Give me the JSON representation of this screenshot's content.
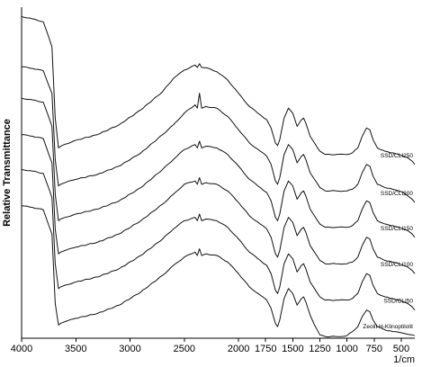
{
  "chart_data": {
    "type": "line",
    "xlabel": "1/cm",
    "ylabel": "Relative Transmittance",
    "xlim": [
      4000,
      375
    ],
    "x_reversed": true,
    "x_ticks": [
      4000,
      3500,
      3000,
      2500,
      2000,
      1750,
      1500,
      1250,
      1000,
      750,
      500
    ],
    "ylim": [
      0,
      100
    ],
    "y_ticks_shown": false,
    "grid": false,
    "legend": "none",
    "line_color": "#111111",
    "series": [
      {
        "name": "SSD/CLI250",
        "x": [
          4000,
          3900,
          3800,
          3720,
          3690,
          3660,
          3640,
          3600,
          3500,
          3300,
          3100,
          2900,
          2700,
          2600,
          2500,
          2400,
          2380,
          2360,
          2340,
          2300,
          2200,
          2100,
          2000,
          1900,
          1800,
          1740,
          1700,
          1660,
          1640,
          1620,
          1580,
          1540,
          1500,
          1460,
          1420,
          1400,
          1380,
          1340,
          1300,
          1250,
          1200,
          1100,
          1000,
          950,
          900,
          860,
          820,
          790,
          760,
          720,
          650,
          580,
          520,
          480,
          440,
          400,
          375
        ],
        "y": [
          97.2,
          96.5,
          95.6,
          88.0,
          66.5,
          57.5,
          58.0,
          58.6,
          59.8,
          61.5,
          64.5,
          69.0,
          74.5,
          78.5,
          81.0,
          82.5,
          81.8,
          82.9,
          81.8,
          81.7,
          80.5,
          78.0,
          74.0,
          70.0,
          67.5,
          66.0,
          63.5,
          59.0,
          58.2,
          60.0,
          66.5,
          69.5,
          68.0,
          64.0,
          66.0,
          66.5,
          65.0,
          61.0,
          59.0,
          56.5,
          55.5,
          55.5,
          55.5,
          56.0,
          57.5,
          61.0,
          63.5,
          63.0,
          60.0,
          57.5,
          56.5,
          56.0,
          55.5,
          55.0,
          54.5,
          53.5,
          52.5
        ]
      },
      {
        "name": "SSD/CLI200",
        "x": [
          4000,
          3900,
          3800,
          3720,
          3690,
          3660,
          3640,
          3600,
          3500,
          3300,
          3100,
          2900,
          2700,
          2600,
          2500,
          2400,
          2380,
          2360,
          2340,
          2300,
          2200,
          2100,
          2000,
          1900,
          1800,
          1740,
          1700,
          1660,
          1640,
          1620,
          1580,
          1540,
          1500,
          1460,
          1420,
          1400,
          1380,
          1340,
          1300,
          1250,
          1200,
          1100,
          1000,
          950,
          900,
          860,
          820,
          790,
          760,
          720,
          650,
          580,
          520,
          480,
          440,
          400,
          375
        ],
        "y": [
          82.0,
          81.5,
          80.8,
          74.0,
          54.0,
          46.0,
          46.5,
          47.0,
          48.0,
          49.5,
          52.0,
          56.0,
          61.5,
          64.5,
          68.0,
          70.5,
          69.5,
          74.0,
          69.5,
          70.0,
          69.5,
          67.0,
          63.0,
          59.0,
          56.5,
          55.0,
          52.5,
          47.5,
          46.5,
          48.5,
          55.5,
          58.5,
          57.0,
          53.0,
          55.0,
          55.5,
          54.0,
          50.0,
          48.0,
          45.5,
          44.5,
          44.5,
          44.5,
          45.0,
          46.5,
          50.0,
          52.5,
          52.0,
          49.0,
          46.5,
          45.5,
          45.0,
          44.5,
          44.0,
          43.0,
          42.0,
          41.0
        ]
      },
      {
        "name": "SSD/CLI150",
        "x": [
          4000,
          3900,
          3800,
          3720,
          3690,
          3660,
          3640,
          3600,
          3500,
          3300,
          3100,
          2900,
          2700,
          2600,
          2500,
          2400,
          2380,
          2360,
          2340,
          2300,
          2200,
          2100,
          2000,
          1900,
          1800,
          1740,
          1700,
          1660,
          1640,
          1620,
          1580,
          1540,
          1500,
          1460,
          1420,
          1400,
          1380,
          1340,
          1300,
          1250,
          1200,
          1100,
          1000,
          950,
          900,
          860,
          820,
          790,
          760,
          720,
          650,
          580,
          520,
          480,
          440,
          400,
          375
        ],
        "y": [
          72.5,
          72.0,
          71.3,
          64.0,
          43.5,
          35.5,
          36.0,
          36.5,
          37.5,
          39.0,
          41.5,
          45.5,
          51.0,
          54.0,
          57.0,
          58.5,
          57.5,
          59.5,
          57.5,
          58.0,
          57.5,
          55.5,
          52.0,
          48.0,
          45.5,
          44.0,
          41.5,
          36.5,
          35.5,
          37.5,
          44.5,
          47.5,
          46.0,
          42.0,
          44.0,
          44.5,
          43.0,
          39.0,
          37.0,
          34.5,
          33.5,
          33.5,
          33.5,
          34.0,
          35.5,
          39.0,
          41.5,
          41.0,
          38.0,
          35.5,
          34.5,
          34.0,
          33.5,
          33.0,
          32.5,
          31.5,
          30.5
        ]
      },
      {
        "name": "SSD/CLI100",
        "x": [
          4000,
          3900,
          3800,
          3720,
          3690,
          3660,
          3640,
          3600,
          3500,
          3300,
          3100,
          2900,
          2700,
          2600,
          2500,
          2400,
          2380,
          2360,
          2340,
          2300,
          2200,
          2100,
          2000,
          1900,
          1800,
          1740,
          1700,
          1660,
          1640,
          1620,
          1580,
          1540,
          1500,
          1460,
          1420,
          1400,
          1380,
          1340,
          1300,
          1250,
          1200,
          1100,
          1000,
          950,
          900,
          860,
          820,
          790,
          760,
          720,
          650,
          580,
          520,
          480,
          440,
          400,
          375
        ],
        "y": [
          61.5,
          61.0,
          60.3,
          53.0,
          33.0,
          25.5,
          26.0,
          26.5,
          27.5,
          29.0,
          31.5,
          35.5,
          40.5,
          43.5,
          46.5,
          47.5,
          46.5,
          48.5,
          46.5,
          47.0,
          46.5,
          44.5,
          41.0,
          37.0,
          34.5,
          33.0,
          30.5,
          25.5,
          24.5,
          26.5,
          33.5,
          36.5,
          35.0,
          31.0,
          33.0,
          33.5,
          32.0,
          28.0,
          26.0,
          23.5,
          22.5,
          22.5,
          22.5,
          23.0,
          24.5,
          28.0,
          30.5,
          30.0,
          27.0,
          24.5,
          23.5,
          23.0,
          22.5,
          22.0,
          21.5,
          20.5,
          19.5
        ]
      },
      {
        "name": "SSD/CLI50",
        "x": [
          4000,
          3900,
          3800,
          3720,
          3690,
          3660,
          3640,
          3600,
          3500,
          3300,
          3100,
          2900,
          2700,
          2600,
          2500,
          2400,
          2380,
          2360,
          2340,
          2300,
          2200,
          2100,
          2000,
          1900,
          1800,
          1740,
          1700,
          1660,
          1640,
          1620,
          1580,
          1540,
          1500,
          1460,
          1420,
          1400,
          1380,
          1340,
          1300,
          1250,
          1200,
          1100,
          1000,
          950,
          900,
          860,
          820,
          790,
          760,
          720,
          650,
          580,
          520,
          480,
          440,
          400,
          375
        ],
        "y": [
          51.0,
          50.5,
          49.8,
          42.5,
          22.5,
          15.0,
          15.5,
          16.0,
          17.0,
          18.5,
          21.0,
          25.0,
          30.0,
          33.0,
          35.5,
          36.5,
          35.5,
          37.5,
          35.5,
          36.0,
          35.5,
          33.5,
          30.0,
          26.0,
          23.5,
          22.0,
          19.5,
          14.5,
          13.5,
          15.5,
          22.5,
          25.5,
          24.0,
          20.0,
          22.0,
          22.5,
          21.0,
          17.0,
          15.0,
          12.5,
          11.5,
          11.5,
          11.5,
          12.0,
          13.5,
          17.0,
          19.5,
          19.0,
          16.0,
          13.5,
          12.5,
          12.0,
          11.5,
          11.0,
          10.5,
          9.5,
          8.5
        ]
      },
      {
        "name": "Zeolit H-Klinoptilolit",
        "x": [
          4000,
          3900,
          3800,
          3720,
          3690,
          3660,
          3640,
          3600,
          3500,
          3300,
          3100,
          2900,
          2700,
          2600,
          2500,
          2400,
          2380,
          2360,
          2340,
          2300,
          2200,
          2100,
          2000,
          1900,
          1800,
          1740,
          1700,
          1660,
          1640,
          1620,
          1580,
          1540,
          1500,
          1460,
          1420,
          1400,
          1380,
          1340,
          1300,
          1250,
          1200,
          1150,
          1100,
          1050,
          1000,
          950,
          900,
          860,
          820,
          790,
          760,
          720,
          650,
          580,
          520,
          480,
          440,
          400,
          375
        ],
        "y": [
          40.0,
          39.5,
          38.8,
          31.5,
          10.5,
          4.0,
          4.5,
          5.0,
          6.0,
          7.5,
          10.0,
          14.0,
          19.0,
          22.0,
          24.5,
          26.0,
          25.0,
          27.0,
          25.0,
          25.5,
          25.0,
          23.0,
          19.5,
          15.5,
          13.0,
          11.5,
          9.0,
          4.5,
          3.5,
          5.5,
          12.0,
          15.0,
          13.5,
          10.0,
          12.0,
          12.5,
          11.0,
          7.0,
          4.0,
          1.0,
          0.5,
          0.5,
          0.5,
          0.5,
          0.8,
          2.0,
          3.5,
          6.5,
          8.5,
          8.0,
          5.5,
          3.5,
          2.5,
          2.0,
          1.8,
          1.5,
          1.2,
          1.0,
          0.8
        ]
      }
    ]
  }
}
